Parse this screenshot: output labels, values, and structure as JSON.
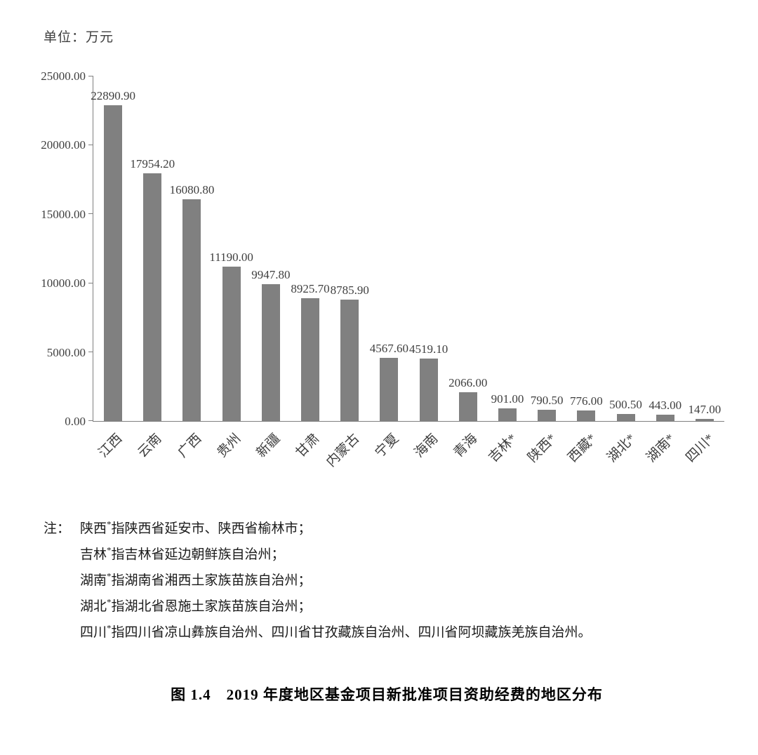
{
  "unit_label": "单位：万元",
  "chart_data": {
    "type": "bar",
    "title": "",
    "xlabel": "",
    "ylabel": "",
    "unit": "万元",
    "categories": [
      "江西",
      "云南",
      "广西",
      "贵州",
      "新疆",
      "甘肃",
      "内蒙古",
      "宁夏",
      "海南",
      "青海",
      "吉林*",
      "陕西*",
      "西藏*",
      "湖北*",
      "湖南*",
      "四川*"
    ],
    "values": [
      22890.9,
      17954.2,
      16080.8,
      11190.0,
      9947.8,
      8925.7,
      8785.9,
      4567.6,
      4519.1,
      2066.0,
      901.0,
      790.5,
      776.0,
      500.5,
      443.0,
      147.0
    ],
    "ylim": [
      0,
      25000
    ],
    "yticks": [
      0,
      5000,
      10000,
      15000,
      20000,
      25000
    ],
    "bar_color": "#808080",
    "grid": false,
    "legend_position": "none",
    "value_labels_shown": true
  },
  "notes": {
    "prefix": "注：",
    "lines": [
      {
        "region": "陕西",
        "star": "*",
        "text": "指陕西省延安市、陕西省榆林市；"
      },
      {
        "region": "吉林",
        "star": "*",
        "text": "指吉林省延边朝鲜族自治州；"
      },
      {
        "region": "湖南",
        "star": "*",
        "text": "指湖南省湘西土家族苗族自治州；"
      },
      {
        "region": "湖北",
        "star": "*",
        "text": "指湖北省恩施土家族苗族自治州；"
      },
      {
        "region": "四川",
        "star": "*",
        "text": "指四川省凉山彝族自治州、四川省甘孜藏族自治州、四川省阿坝藏族羌族自治州。"
      }
    ]
  },
  "caption": "图 1.4　2019 年度地区基金项目新批准项目资助经费的地区分布"
}
